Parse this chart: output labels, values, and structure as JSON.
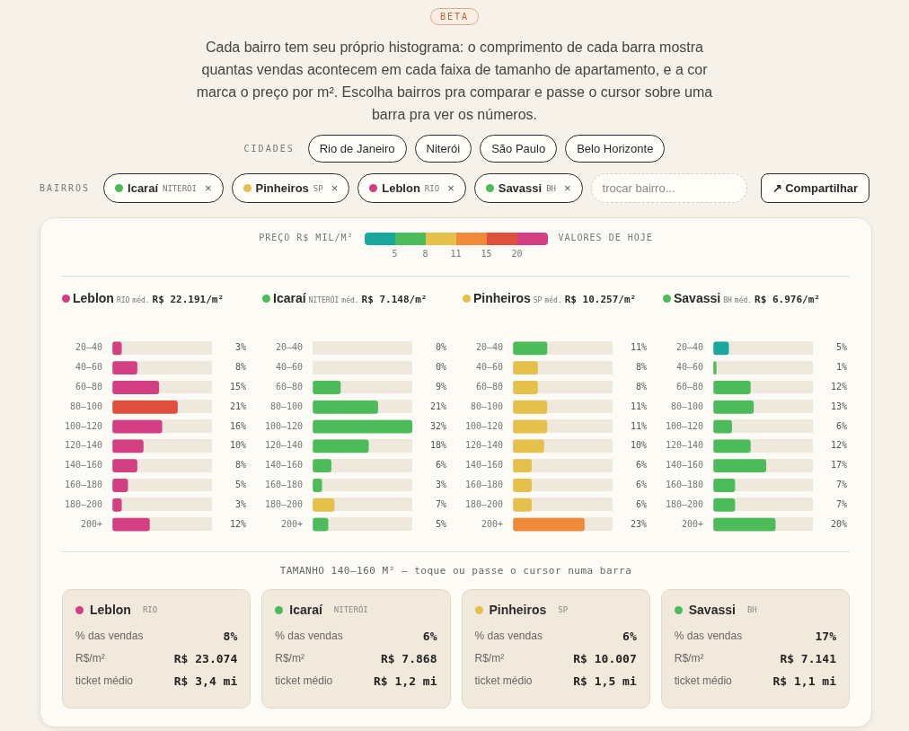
{
  "chart_data": [
    {
      "type": "other",
      "subtitle": "Cada bairro tem seu próprio histograma: o comprimento de cada barra mostra quantas vendas acontecem em cada faixa de tamanho de apartamento, e a cor marca o preço por m². Escolha bairros pra comparar e passe o cursor sobre uma barra pra ver os números.",
      "annotations": [
        "BETA",
        "CIDADES",
        "Rio de Janeiro",
        "Niterói",
        "São Paulo",
        "Belo Horizonte"
      ]
    },
    {
      "type": "other",
      "colors": [
        "#4cbb5a",
        "#e5c04a",
        "#d33f82",
        "#4cbb5a"
      ],
      "annotations": [
        "BAIRROS",
        "Icaraí",
        "NITERÓI",
        "×",
        "Pinheiros",
        "SP",
        "×",
        "Leblon",
        "RIO",
        "×",
        "Savassi",
        "BH",
        "×",
        "trocar bairro...",
        "↗",
        "Compartilhar"
      ]
    },
    {
      "type": "other",
      "clabel": "PREÇO R$ MIL/M²",
      "colors": [
        "#1aa89d",
        "#4cbb5a",
        "#e5c04a",
        "#ee8a3a",
        "#e04f3b",
        "#d33f82"
      ],
      "annotations": [
        "5",
        "8",
        "11",
        "15",
        "20",
        "VALORES DE HOJE"
      ]
    },
    {
      "type": "bar",
      "orientation": "horizontal",
      "title": "Leblon",
      "subtitle": "RIO",
      "annotations": [
        "méd.",
        "R$ 22.191/m²"
      ],
      "color": "#d33f82",
      "categories": [
        "20–40",
        "40–60",
        "60–80",
        "80–100",
        "100–120",
        "120–140",
        "140–160",
        "160–180",
        "180–200",
        "200+"
      ],
      "values": [
        3,
        8,
        15,
        21,
        16,
        10,
        8,
        5,
        3,
        12
      ],
      "colors": [
        "#d33f82",
        "#d33f82",
        "#d33f82",
        "#e04f3b",
        "#d33f82",
        "#d33f82",
        "#d33f82",
        "#d33f82",
        "#d33f82",
        "#d33f82"
      ],
      "value_labels": [
        "3%",
        "8%",
        "15%",
        "21%",
        "16%",
        "10%",
        "8%",
        "5%",
        "3%",
        "12%"
      ]
    },
    {
      "type": "bar",
      "orientation": "horizontal",
      "title": "Icaraí",
      "subtitle": "NITERÓI",
      "annotations": [
        "méd.",
        "R$ 7.148/m²"
      ],
      "color": "#4cbb5a",
      "categories": [
        "20–40",
        "40–60",
        "60–80",
        "80–100",
        "100–120",
        "120–140",
        "140–160",
        "160–180",
        "180–200",
        "200+"
      ],
      "values": [
        0,
        0,
        9,
        21,
        32,
        18,
        6,
        3,
        7,
        5
      ],
      "colors": [
        "#4cbb5a",
        "#4cbb5a",
        "#4cbb5a",
        "#4cbb5a",
        "#4cbb5a",
        "#4cbb5a",
        "#4cbb5a",
        "#4cbb5a",
        "#e5c04a",
        "#4cbb5a"
      ],
      "value_labels": [
        "0%",
        "0%",
        "9%",
        "21%",
        "32%",
        "18%",
        "6%",
        "3%",
        "7%",
        "5%"
      ]
    },
    {
      "type": "bar",
      "orientation": "horizontal",
      "title": "Pinheiros",
      "subtitle": "SP",
      "annotations": [
        "méd.",
        "R$ 10.257/m²"
      ],
      "color": "#e5c04a",
      "categories": [
        "20–40",
        "40–60",
        "60–80",
        "80–100",
        "100–120",
        "120–140",
        "140–160",
        "160–180",
        "180–200",
        "200+"
      ],
      "values": [
        11,
        8,
        8,
        11,
        11,
        10,
        6,
        6,
        6,
        23
      ],
      "colors": [
        "#4cbb5a",
        "#e5c04a",
        "#e5c04a",
        "#e5c04a",
        "#e5c04a",
        "#e5c04a",
        "#e5c04a",
        "#e5c04a",
        "#e5c04a",
        "#ee8a3a"
      ],
      "value_labels": [
        "11%",
        "8%",
        "8%",
        "11%",
        "11%",
        "10%",
        "6%",
        "6%",
        "6%",
        "23%"
      ]
    },
    {
      "type": "bar",
      "orientation": "horizontal",
      "title": "Savassi",
      "subtitle": "BH",
      "annotations": [
        "méd.",
        "R$ 6.976/m²"
      ],
      "color": "#4cbb5a",
      "categories": [
        "20–40",
        "40–60",
        "60–80",
        "80–100",
        "100–120",
        "120–140",
        "140–160",
        "160–180",
        "180–200",
        "200+"
      ],
      "values": [
        5,
        1,
        12,
        13,
        6,
        12,
        17,
        7,
        7,
        20
      ],
      "colors": [
        "#1aa89d",
        "#4cbb5a",
        "#4cbb5a",
        "#4cbb5a",
        "#4cbb5a",
        "#4cbb5a",
        "#4cbb5a",
        "#4cbb5a",
        "#4cbb5a",
        "#4cbb5a"
      ],
      "value_labels": [
        "5%",
        "1%",
        "12%",
        "13%",
        "6%",
        "12%",
        "17%",
        "7%",
        "7%",
        "20%"
      ]
    },
    {
      "type": "other",
      "title": "TAMANHO 140–160 M² — toque ou passe o cursor numa barra"
    },
    {
      "type": "other",
      "title": "Leblon",
      "subtitle": "RIO",
      "color": "#d33f82",
      "annotations": [
        "% das vendas",
        "8%",
        "R$/m²",
        "R$ 23.074",
        "ticket médio",
        "R$ 3,4 mi"
      ]
    },
    {
      "type": "other",
      "title": "Icaraí",
      "subtitle": "NITERÓI",
      "color": "#4cbb5a",
      "annotations": [
        "% das vendas",
        "6%",
        "R$/m²",
        "R$ 7.868",
        "ticket médio",
        "R$ 1,2 mi"
      ]
    },
    {
      "type": "other",
      "title": "Pinheiros",
      "subtitle": "SP",
      "color": "#e5c04a",
      "annotations": [
        "% das vendas",
        "6%",
        "R$/m²",
        "R$ 10.007",
        "ticket médio",
        "R$ 1,5 mi"
      ]
    },
    {
      "type": "other",
      "title": "Savassi",
      "subtitle": "BH",
      "color": "#4cbb5a",
      "annotations": [
        "% das vendas",
        "17%",
        "R$/m²",
        "R$ 7.141",
        "ticket médio",
        "R$ 1,1 mi"
      ]
    }
  ]
}
